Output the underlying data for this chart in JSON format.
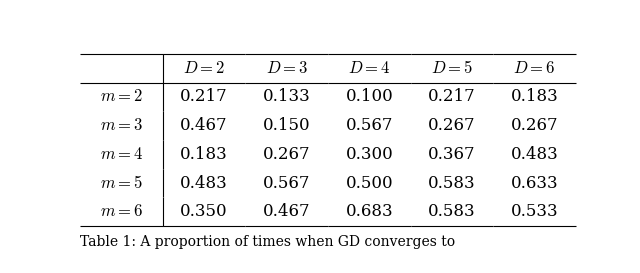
{
  "col_headers": [
    "$D = 2$",
    "$D = 3$",
    "$D = 4$",
    "$D = 5$",
    "$D = 6$"
  ],
  "row_headers": [
    "$m = 2$",
    "$m = 3$",
    "$m = 4$",
    "$m = 5$",
    "$m = 6$"
  ],
  "table_data": [
    [
      "0.217",
      "0.133",
      "0.100",
      "0.217",
      "0.183"
    ],
    [
      "0.467",
      "0.150",
      "0.567",
      "0.267",
      "0.267"
    ],
    [
      "0.183",
      "0.267",
      "0.300",
      "0.367",
      "0.483"
    ],
    [
      "0.483",
      "0.567",
      "0.500",
      "0.583",
      "0.633"
    ],
    [
      "0.350",
      "0.467",
      "0.683",
      "0.583",
      "0.533"
    ]
  ],
  "caption": "Table 1: A proportion of times when GD converges to",
  "figsize": [
    6.4,
    2.73
  ],
  "dpi": 100,
  "background_color": "#ffffff",
  "font_size": 12,
  "caption_font_size": 10
}
